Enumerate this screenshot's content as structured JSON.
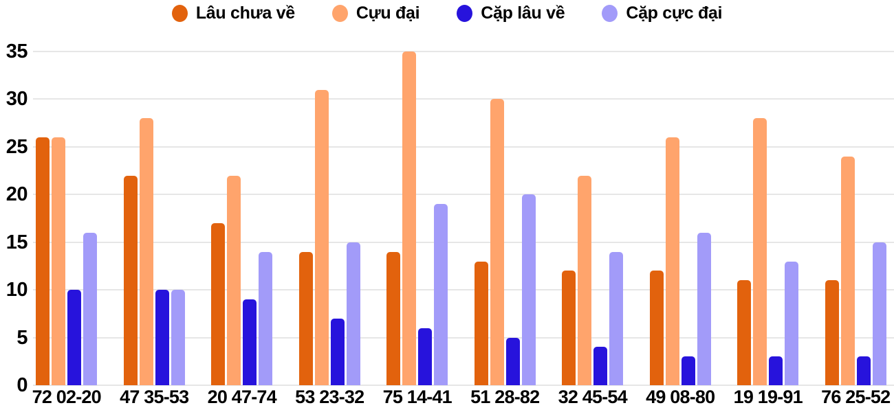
{
  "colors": {
    "background": "#ffffff",
    "grid": "#e6e6e6",
    "text": "#000000"
  },
  "chart_data": {
    "type": "bar",
    "title": "",
    "xlabel": "",
    "ylabel": "",
    "ylim": [
      0,
      35
    ],
    "yticks": [
      0,
      5,
      10,
      15,
      20,
      25,
      30,
      35
    ],
    "grid": true,
    "legend_position": "top",
    "categories": [
      "72 02-20",
      "47 35-53",
      "20 47-74",
      "53 23-32",
      "75 14-41",
      "51 28-82",
      "32 45-54",
      "49 08-80",
      "19 19-91",
      "76 25-52"
    ],
    "series": [
      {
        "name": "Lâu chưa về",
        "color": "#e2620d",
        "values": [
          26,
          22,
          17,
          14,
          14,
          13,
          12,
          12,
          11,
          11
        ]
      },
      {
        "name": "Cựu đại",
        "color": "#ffa46c",
        "values": [
          26,
          28,
          22,
          31,
          35,
          30,
          22,
          26,
          28,
          24
        ]
      },
      {
        "name": "Cặp lâu về",
        "color": "#2713dc",
        "values": [
          10,
          10,
          9,
          7,
          6,
          5,
          4,
          3,
          3,
          3
        ]
      },
      {
        "name": "Cặp cực đại",
        "color": "#a29bf9",
        "values": [
          16,
          10,
          14,
          15,
          19,
          20,
          14,
          16,
          13,
          15
        ]
      }
    ]
  }
}
